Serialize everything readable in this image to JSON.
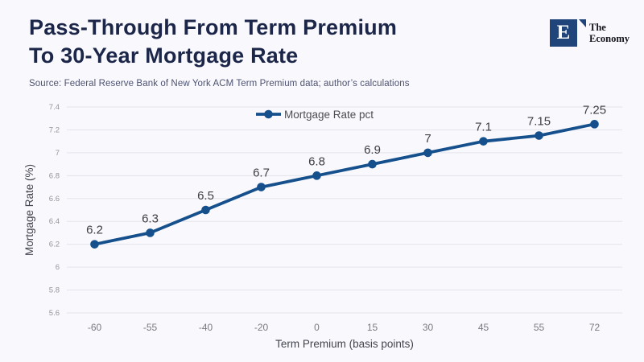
{
  "page": {
    "background": "#f8f8fd"
  },
  "header": {
    "title_line1": "Pass-Through From Term Premium",
    "title_line2": "To 30-Year Mortgage Rate",
    "source": "Source: Federal Reserve Bank of New York ACM Term Premium data; author’s calculations"
  },
  "logo": {
    "letter": "E",
    "name_line1": "The",
    "name_line2": "Economy",
    "square_color": "#20457a"
  },
  "chart_data": {
    "type": "line",
    "categories": [
      "-60",
      "-55",
      "-40",
      "-20",
      "0",
      "15",
      "30",
      "45",
      "55",
      "72"
    ],
    "series": [
      {
        "name": "Mortgage Rate pct",
        "values": [
          6.2,
          6.3,
          6.5,
          6.7,
          6.8,
          6.9,
          7.0,
          7.1,
          7.15,
          7.25
        ],
        "point_labels": [
          "6.2",
          "6.3",
          "6.5",
          "6.7",
          "6.8",
          "6.9",
          "7",
          "7.1",
          "7.15",
          "7.25"
        ],
        "color": "#15508c"
      }
    ],
    "xlabel": "Term Premium (basis points)",
    "ylabel": "Mortgage Rate (%)",
    "ylim": [
      5.6,
      7.4
    ],
    "ytick_step": 0.2,
    "yticks": [
      "5.6",
      "5.8",
      "6",
      "6.2",
      "6.4",
      "6.6",
      "6.8",
      "7",
      "7.2",
      "7.4"
    ],
    "grid": true,
    "legend_position": "top-center",
    "colors": {
      "line": "#15508c",
      "gridline": "#e4e4ec",
      "ytick_label": "#94949c",
      "xtick_label": "#7a7a80",
      "data_label": "#3f3f44",
      "axis_title": "#44444e",
      "legend_text": "#4d4d52"
    }
  }
}
